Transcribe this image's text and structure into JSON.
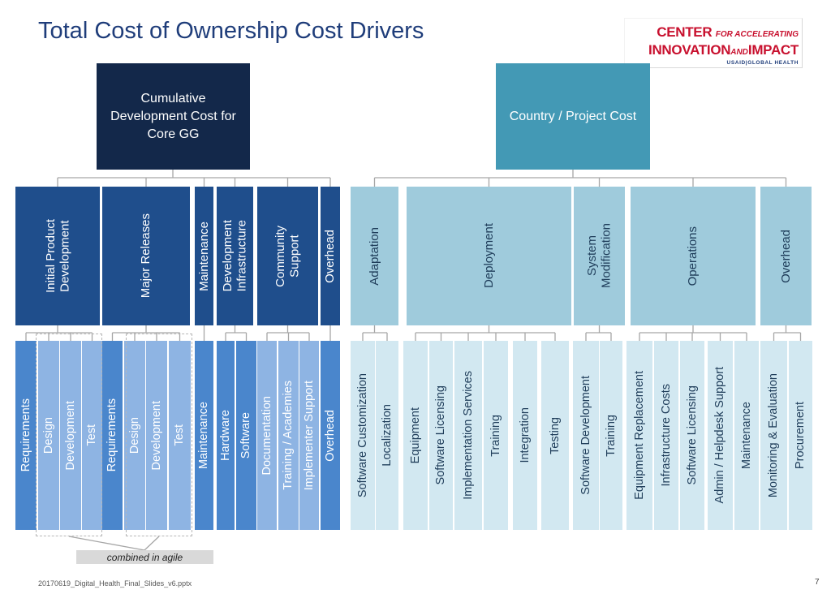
{
  "title": "Total Cost of Ownership Cost Drivers",
  "logo": {
    "line1_big": "CENTER",
    "line1_small": "FOR ACCELERATING",
    "line2_big_a": "INNOVATION",
    "line2_small": "AND",
    "line2_big_b": "IMPACT",
    "line3": "USAID|GLOBAL HEALTH"
  },
  "top": {
    "left": "Cumulative Development Cost for Core GG",
    "right": "Country / Project Cost"
  },
  "level2": [
    "Initial Product\nDevelopment",
    "Major Releases",
    "Maintenance",
    "Development\nInfrastructure",
    "Community\nSupport",
    "Overhead",
    "Adaptation",
    "Deployment",
    "System\nModification",
    "Operations",
    "Overhead"
  ],
  "level3": [
    "Requirements",
    "Design",
    "Development",
    "Test",
    "Requirements",
    "Design",
    "Development",
    "Test",
    "Maintenance",
    "Hardware",
    "Software",
    "Documentation",
    "Training / Academies",
    "Implementer Support",
    "Overhead",
    "Software Customization",
    "Localization",
    "Equipment",
    "Software Licensing",
    "Implementation Services",
    "Training",
    "Integration",
    "Testing",
    "Software Development",
    "Training",
    "Equipment Replacement",
    "Infrastructure Costs",
    "Software Licensing",
    "Admin / Helpdesk Support",
    "Maintenance",
    "Monitoring & Evaluation",
    "Procurement"
  ],
  "agile_note": "combined in agile",
  "footer": "20170619_Digital_Health_Final_Slides_v6.pptx",
  "page_number": "7",
  "colors": {
    "top_left": "#13284a",
    "top_right": "#4399b5",
    "level2_left": "#1f4e8c",
    "level2_right": "#9fcbdc",
    "level3_left_a": "#4a86cc",
    "level3_left_b": "#8eb4e3",
    "level3_right": "#d2e8f1",
    "connector": "#a6a6a6"
  }
}
